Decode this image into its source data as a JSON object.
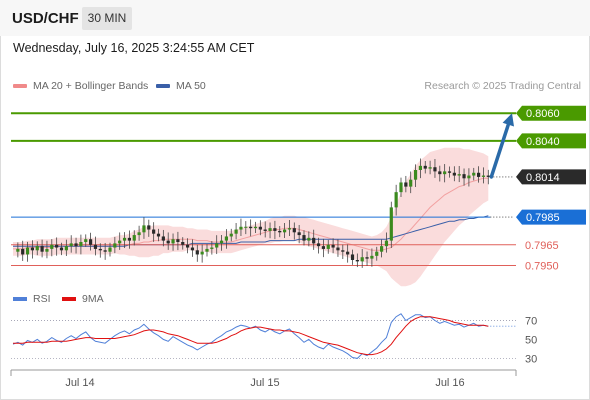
{
  "header": {
    "symbol": "USD/CHF",
    "interval": "30 MIN"
  },
  "datetime": "Wednesday, July 16, 2025 3:24:55 AM CET",
  "legend": {
    "bollinger": "MA 20 + Bollinger Bands",
    "ma50": "MA 50",
    "credit": "Research © 2025 Trading Central"
  },
  "rsi_legend": {
    "rsi": "RSI",
    "ma": "9MA"
  },
  "colors": {
    "resistance": "#4a9a00",
    "last": "#2a2a2a",
    "pivot": "#1a6fd6",
    "support": "#e0605a",
    "bollinger_fill": "#f8d0d0",
    "bollinger_line": "#f2a0a0",
    "ma50": "#3a5fa8",
    "rsi": "#5080d8",
    "rsi_ma": "#e01010",
    "candle_up": "#3b8a1e",
    "candle_down": "#2a2a2a",
    "arrow": "#2a6aa8"
  },
  "chart_data": [
    {
      "type": "candlestick",
      "x_ticks": [
        "Jul 14",
        "Jul 15",
        "Jul 16"
      ],
      "ylim": [
        0.7941,
        0.8071
      ],
      "levels": [
        {
          "value": 0.806,
          "label": "0.8060",
          "kind": "resistance"
        },
        {
          "value": 0.804,
          "label": "0.8040",
          "kind": "resistance"
        },
        {
          "value": 0.8014,
          "label": "0.8014",
          "kind": "last"
        },
        {
          "value": 0.7985,
          "label": "0.7985",
          "kind": "pivot"
        },
        {
          "value": 0.7965,
          "label": "0.7965",
          "kind": "support"
        },
        {
          "value": 0.795,
          "label": "0.7950",
          "kind": "support"
        }
      ],
      "close": [
        0.796,
        0.7962,
        0.7958,
        0.7963,
        0.7961,
        0.7964,
        0.796,
        0.7962,
        0.7965,
        0.7963,
        0.7961,
        0.7964,
        0.7966,
        0.7964,
        0.7967,
        0.7969,
        0.7965,
        0.7962,
        0.7961,
        0.796,
        0.7963,
        0.7966,
        0.7968,
        0.797,
        0.7968,
        0.7972,
        0.7974,
        0.7979,
        0.7976,
        0.7973,
        0.7971,
        0.7968,
        0.7966,
        0.7969,
        0.7967,
        0.7965,
        0.7963,
        0.7961,
        0.7958,
        0.796,
        0.7962,
        0.7963,
        0.7966,
        0.7968,
        0.7971,
        0.7973,
        0.7976,
        0.7978,
        0.7978,
        0.7977,
        0.7978,
        0.7976,
        0.7975,
        0.7977,
        0.7975,
        0.7974,
        0.7976,
        0.7977,
        0.7974,
        0.7972,
        0.7968,
        0.797,
        0.7966,
        0.7964,
        0.7962,
        0.7965,
        0.7963,
        0.7961,
        0.796,
        0.7958,
        0.7954,
        0.7953,
        0.7956,
        0.7955,
        0.7957,
        0.796,
        0.7964,
        0.7968,
        0.7992,
        0.8003,
        0.801,
        0.8007,
        0.8012,
        0.8019,
        0.8022,
        0.802,
        0.8021,
        0.8018,
        0.8016,
        0.8018,
        0.8017,
        0.8015,
        0.8016,
        0.8013,
        0.8015,
        0.8017,
        0.8014,
        0.8015,
        0.8014
      ],
      "ma20": [
        0.7962,
        0.7962,
        0.7962,
        0.7963,
        0.7963,
        0.7963,
        0.7963,
        0.7963,
        0.7963,
        0.7964,
        0.7964,
        0.7964,
        0.7964,
        0.7964,
        0.7964,
        0.7964,
        0.7964,
        0.7964,
        0.7964,
        0.7964,
        0.7964,
        0.7965,
        0.7965,
        0.7965,
        0.7965,
        0.7966,
        0.7966,
        0.7967,
        0.7967,
        0.7968,
        0.7968,
        0.7969,
        0.7969,
        0.7969,
        0.7969,
        0.7969,
        0.7969,
        0.7969,
        0.7968,
        0.7968,
        0.7968,
        0.7967,
        0.7967,
        0.7967,
        0.7967,
        0.7967,
        0.7968,
        0.7969,
        0.797,
        0.7971,
        0.7972,
        0.7973,
        0.7974,
        0.7975,
        0.7976,
        0.7976,
        0.7977,
        0.7977,
        0.7977,
        0.7976,
        0.7975,
        0.7974,
        0.7973,
        0.7972,
        0.7971,
        0.797,
        0.7969,
        0.7968,
        0.7967,
        0.7966,
        0.7965,
        0.7964,
        0.7963,
        0.7962,
        0.7961,
        0.7961,
        0.7961,
        0.7962,
        0.7963,
        0.7966,
        0.7969,
        0.7973,
        0.7976,
        0.798,
        0.7984,
        0.7988,
        0.7992,
        0.7995,
        0.7998,
        0.8001,
        0.8003,
        0.8005,
        0.8007,
        0.8008,
        0.801,
        0.8011,
        0.8012,
        0.8013,
        0.8013
      ],
      "bb_half_width": [
        0.0005,
        0.0005,
        0.0005,
        0.0005,
        0.0005,
        0.0006,
        0.0006,
        0.0006,
        0.0006,
        0.0006,
        0.0006,
        0.0006,
        0.0006,
        0.0006,
        0.0006,
        0.0006,
        0.0006,
        0.0006,
        0.0006,
        0.0006,
        0.0006,
        0.0006,
        0.0007,
        0.0007,
        0.0008,
        0.0009,
        0.001,
        0.0011,
        0.0011,
        0.0011,
        0.0011,
        0.001,
        0.001,
        0.0009,
        0.0009,
        0.0009,
        0.0008,
        0.0008,
        0.0008,
        0.0008,
        0.0008,
        0.0008,
        0.0008,
        0.0008,
        0.0008,
        0.0008,
        0.0008,
        0.0008,
        0.0008,
        0.0008,
        0.0008,
        0.0008,
        0.0008,
        0.0009,
        0.0009,
        0.0009,
        0.0009,
        0.0009,
        0.0009,
        0.0009,
        0.001,
        0.001,
        0.001,
        0.001,
        0.001,
        0.001,
        0.001,
        0.001,
        0.001,
        0.001,
        0.001,
        0.001,
        0.001,
        0.001,
        0.001,
        0.0011,
        0.0013,
        0.0016,
        0.0022,
        0.0028,
        0.0034,
        0.0038,
        0.004,
        0.0042,
        0.0042,
        0.0041,
        0.004,
        0.0038,
        0.0036,
        0.0034,
        0.0032,
        0.003,
        0.0028,
        0.0026,
        0.0024,
        0.0022,
        0.002,
        0.0018,
        0.0016
      ],
      "ma50": [
        0.7964,
        0.7964,
        0.7964,
        0.7964,
        0.7964,
        0.7964,
        0.7964,
        0.7964,
        0.7964,
        0.7964,
        0.7964,
        0.7964,
        0.7964,
        0.7964,
        0.7964,
        0.7964,
        0.7964,
        0.7964,
        0.7964,
        0.7964,
        0.7964,
        0.7964,
        0.7964,
        0.7964,
        0.7965,
        0.7965,
        0.7965,
        0.7965,
        0.7965,
        0.7965,
        0.7965,
        0.7965,
        0.7965,
        0.7965,
        0.7965,
        0.7965,
        0.7965,
        0.7966,
        0.7966,
        0.7966,
        0.7966,
        0.7966,
        0.7966,
        0.7966,
        0.7966,
        0.7966,
        0.7966,
        0.7967,
        0.7967,
        0.7967,
        0.7967,
        0.7967,
        0.7967,
        0.7968,
        0.7968,
        0.7968,
        0.7968,
        0.7968,
        0.7968,
        0.7969,
        0.7969,
        0.7969,
        0.7969,
        0.7969,
        0.7969,
        0.7969,
        0.7969,
        0.7969,
        0.7969,
        0.7969,
        0.7969,
        0.7969,
        0.7969,
        0.7969,
        0.7969,
        0.7969,
        0.7969,
        0.7969,
        0.797,
        0.7971,
        0.7972,
        0.7973,
        0.7974,
        0.7975,
        0.7976,
        0.7977,
        0.7978,
        0.7979,
        0.798,
        0.7981,
        0.7982,
        0.7982,
        0.7983,
        0.7983,
        0.7984,
        0.7984,
        0.7985,
        0.7985,
        0.7986
      ],
      "projection": {
        "from": 0.8014,
        "to": 0.806
      }
    },
    {
      "type": "line",
      "name": "RSI",
      "y_ticks": [
        70,
        50,
        30
      ],
      "ylim": [
        22,
        80
      ],
      "rsi": [
        45,
        47,
        44,
        49,
        47,
        50,
        46,
        48,
        52,
        49,
        47,
        51,
        54,
        51,
        55,
        58,
        52,
        48,
        47,
        46,
        50,
        54,
        57,
        59,
        56,
        60,
        62,
        66,
        61,
        57,
        54,
        50,
        48,
        53,
        50,
        47,
        44,
        42,
        39,
        42,
        45,
        47,
        51,
        54,
        58,
        60,
        63,
        65,
        64,
        62,
        64,
        60,
        58,
        61,
        58,
        56,
        59,
        61,
        56,
        52,
        47,
        50,
        45,
        42,
        40,
        45,
        42,
        40,
        38,
        35,
        31,
        30,
        35,
        33,
        37,
        41,
        47,
        52,
        68,
        74,
        77,
        70,
        73,
        76,
        76,
        73,
        74,
        70,
        67,
        69,
        67,
        65,
        66,
        63,
        65,
        67,
        64,
        65,
        64
      ],
      "ma9": [
        46,
        46,
        46,
        47,
        47,
        47,
        47,
        47,
        48,
        48,
        48,
        48,
        49,
        50,
        51,
        52,
        52,
        51,
        51,
        51,
        51,
        51,
        52,
        53,
        54,
        55,
        57,
        59,
        60,
        60,
        59,
        58,
        56,
        55,
        54,
        52,
        50,
        48,
        46,
        46,
        46,
        46,
        47,
        49,
        51,
        54,
        56,
        59,
        61,
        62,
        63,
        63,
        62,
        61,
        60,
        60,
        59,
        59,
        58,
        57,
        55,
        53,
        51,
        49,
        47,
        46,
        45,
        44,
        42,
        40,
        38,
        36,
        35,
        34,
        34,
        35,
        37,
        40,
        45,
        52,
        58,
        64,
        69,
        72,
        74,
        74,
        74,
        73,
        72,
        71,
        70,
        68,
        67,
        66,
        65,
        65,
        65,
        65,
        64
      ]
    }
  ]
}
